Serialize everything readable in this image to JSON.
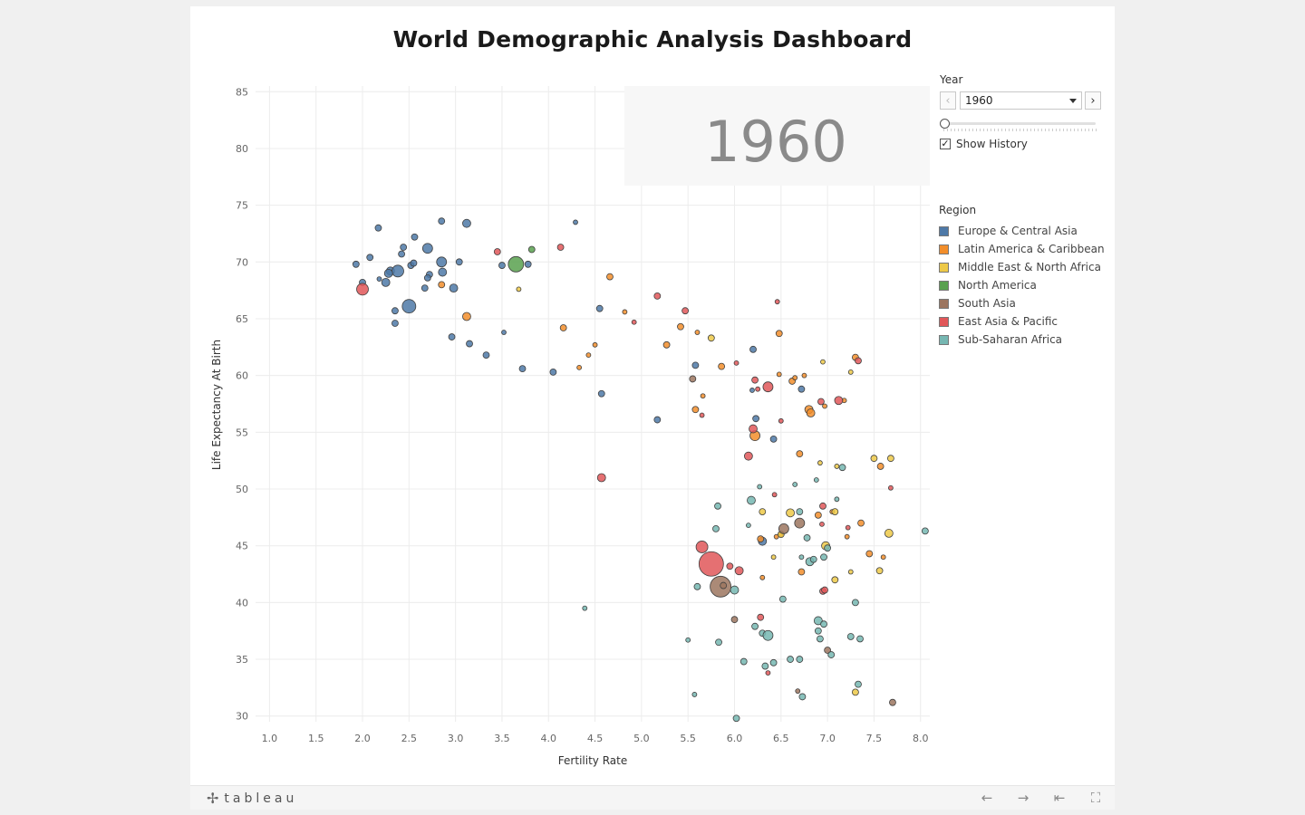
{
  "title": "World Demographic Analysis Dashboard",
  "year_watermark": "1960",
  "controls": {
    "year_label": "Year",
    "year_value": "1960",
    "slider_position": 0,
    "show_history_label": "Show History",
    "show_history_checked": true
  },
  "legend": {
    "title": "Region",
    "items": [
      {
        "label": "Europe & Central Asia",
        "color": "#4e79a7"
      },
      {
        "label": "Latin America & Caribbean",
        "color": "#f28e2b"
      },
      {
        "label": "Middle East & North Africa",
        "color": "#edc948"
      },
      {
        "label": "North America",
        "color": "#59a14f"
      },
      {
        "label": "South Asia",
        "color": "#9c755f"
      },
      {
        "label": "East Asia & Pacific",
        "color": "#e15759"
      },
      {
        "label": "Sub-Saharan Africa",
        "color": "#76b7b2"
      }
    ]
  },
  "footer": {
    "logo_text": "tableau",
    "icons": [
      "undo-icon",
      "redo-icon",
      "revert-icon",
      "fullscreen-icon"
    ]
  },
  "chart_data": {
    "type": "scatter",
    "title": "",
    "xlabel": "Fertility Rate",
    "ylabel": "Life Expectancy At Birth",
    "xlim": [
      0.85,
      8.1
    ],
    "ylim": [
      29.5,
      85.5
    ],
    "xticks": [
      "1.0",
      "1.5",
      "2.0",
      "2.5",
      "3.0",
      "3.5",
      "4.0",
      "4.5",
      "5.0",
      "5.5",
      "6.0",
      "6.5",
      "7.0",
      "7.5",
      "8.0"
    ],
    "yticks": [
      "30",
      "35",
      "40",
      "45",
      "50",
      "55",
      "60",
      "65",
      "70",
      "75",
      "80",
      "85"
    ],
    "grid": true,
    "legend_position": "right",
    "size_encodes": "population",
    "series": [
      {
        "name": "Europe & Central Asia",
        "color": "#4e79a7",
        "points": [
          [
            1.93,
            69.8,
            3
          ],
          [
            2.0,
            68.2,
            3
          ],
          [
            2.08,
            70.4,
            3
          ],
          [
            2.17,
            73.0,
            3
          ],
          [
            2.25,
            68.2,
            4
          ],
          [
            2.3,
            69.2,
            4
          ],
          [
            2.35,
            65.7,
            3
          ],
          [
            2.35,
            64.6,
            3
          ],
          [
            2.38,
            69.2,
            6
          ],
          [
            2.42,
            70.7,
            3
          ],
          [
            2.44,
            71.3,
            3
          ],
          [
            2.52,
            69.7,
            3
          ],
          [
            2.55,
            69.9,
            3
          ],
          [
            2.56,
            72.2,
            3
          ],
          [
            2.5,
            66.1,
            7
          ],
          [
            2.67,
            67.7,
            3
          ],
          [
            2.7,
            71.2,
            5
          ],
          [
            2.72,
            68.9,
            3
          ],
          [
            2.7,
            68.6,
            3
          ],
          [
            2.85,
            73.6,
            3
          ],
          [
            2.85,
            70.0,
            5
          ],
          [
            2.86,
            69.1,
            4
          ],
          [
            2.96,
            63.4,
            3
          ],
          [
            2.98,
            67.7,
            4
          ],
          [
            3.04,
            70.0,
            3
          ],
          [
            3.12,
            73.4,
            4
          ],
          [
            3.15,
            62.8,
            3
          ],
          [
            3.33,
            61.8,
            3
          ],
          [
            3.5,
            69.7,
            3
          ],
          [
            3.52,
            63.8,
            2
          ],
          [
            3.72,
            60.6,
            3
          ],
          [
            3.78,
            69.8,
            3
          ],
          [
            4.05,
            60.3,
            3
          ],
          [
            4.29,
            73.5,
            2
          ],
          [
            4.55,
            65.9,
            3
          ],
          [
            4.57,
            58.4,
            3
          ],
          [
            5.17,
            56.1,
            3
          ],
          [
            5.58,
            60.9,
            3
          ],
          [
            6.2,
            62.3,
            3
          ],
          [
            6.23,
            56.2,
            3
          ],
          [
            6.19,
            58.7,
            2
          ],
          [
            6.42,
            54.4,
            3
          ],
          [
            6.72,
            58.8,
            3
          ],
          [
            6.3,
            45.4,
            4
          ],
          [
            2.28,
            69.0,
            4
          ],
          [
            2.18,
            68.5,
            2
          ]
        ]
      },
      {
        "name": "Latin America & Caribbean",
        "color": "#f28e2b",
        "points": [
          [
            2.85,
            68.0,
            3
          ],
          [
            3.12,
            65.2,
            4
          ],
          [
            4.16,
            64.2,
            3
          ],
          [
            4.33,
            60.7,
            2
          ],
          [
            4.43,
            61.8,
            2
          ],
          [
            4.5,
            62.7,
            2
          ],
          [
            4.66,
            68.7,
            3
          ],
          [
            4.82,
            65.6,
            2
          ],
          [
            5.27,
            62.7,
            3
          ],
          [
            5.42,
            64.3,
            3
          ],
          [
            5.6,
            63.8,
            2
          ],
          [
            5.58,
            57.0,
            3
          ],
          [
            5.66,
            58.2,
            2
          ],
          [
            5.86,
            60.8,
            3
          ],
          [
            6.22,
            54.7,
            5
          ],
          [
            6.3,
            42.2,
            2
          ],
          [
            6.48,
            63.7,
            3
          ],
          [
            6.48,
            60.1,
            2
          ],
          [
            6.62,
            59.5,
            3
          ],
          [
            6.65,
            59.8,
            2
          ],
          [
            6.7,
            53.1,
            3
          ],
          [
            6.75,
            60.0,
            2
          ],
          [
            6.8,
            57.0,
            4
          ],
          [
            6.82,
            56.7,
            4
          ],
          [
            6.97,
            57.3,
            2
          ],
          [
            7.05,
            48.0,
            2
          ],
          [
            7.18,
            57.8,
            2
          ],
          [
            7.3,
            61.6,
            3
          ],
          [
            7.36,
            47.0,
            3
          ],
          [
            7.45,
            44.3,
            3
          ],
          [
            7.57,
            52.0,
            3
          ],
          [
            6.9,
            47.7,
            3
          ],
          [
            6.72,
            42.7,
            3
          ],
          [
            6.28,
            45.6,
            3
          ],
          [
            7.21,
            45.8,
            2
          ],
          [
            6.45,
            45.8,
            2
          ],
          [
            6.5,
            46.0,
            2
          ],
          [
            7.6,
            44.0,
            2
          ]
        ]
      },
      {
        "name": "Middle East & North Africa",
        "color": "#edc948",
        "points": [
          [
            3.68,
            67.6,
            2
          ],
          [
            5.75,
            63.3,
            3
          ],
          [
            6.5,
            46.0,
            3
          ],
          [
            6.6,
            47.9,
            4
          ],
          [
            6.95,
            61.2,
            2
          ],
          [
            6.98,
            45.0,
            4
          ],
          [
            7.08,
            48.0,
            3
          ],
          [
            7.1,
            52.0,
            2
          ],
          [
            7.25,
            60.3,
            2
          ],
          [
            6.92,
            52.3,
            2
          ],
          [
            7.5,
            52.7,
            3
          ],
          [
            7.68,
            52.7,
            3
          ],
          [
            7.66,
            46.1,
            4
          ],
          [
            7.56,
            42.8,
            3
          ],
          [
            7.25,
            42.7,
            2
          ],
          [
            7.08,
            42.0,
            3
          ],
          [
            7.3,
            32.1,
            3
          ],
          [
            6.3,
            48.0,
            3
          ],
          [
            6.42,
            44.0,
            2
          ]
        ]
      },
      {
        "name": "North America",
        "color": "#59a14f",
        "points": [
          [
            3.65,
            69.8,
            8
          ],
          [
            3.82,
            71.1,
            3
          ]
        ]
      },
      {
        "name": "South Asia",
        "color": "#9c755f",
        "points": [
          [
            5.85,
            41.4,
            11
          ],
          [
            5.88,
            41.5,
            3
          ],
          [
            6.53,
            46.5,
            5
          ],
          [
            6.7,
            47.0,
            5
          ],
          [
            5.55,
            59.7,
            3
          ],
          [
            6.0,
            38.5,
            3
          ],
          [
            6.68,
            32.2,
            2
          ],
          [
            7.0,
            35.8,
            3
          ],
          [
            7.7,
            31.2,
            3
          ]
        ]
      },
      {
        "name": "East Asia & Pacific",
        "color": "#e15759",
        "points": [
          [
            2.0,
            67.6,
            6
          ],
          [
            3.45,
            70.9,
            3
          ],
          [
            4.13,
            71.3,
            3
          ],
          [
            4.57,
            51.0,
            4
          ],
          [
            4.92,
            64.7,
            2
          ],
          [
            5.17,
            67.0,
            3
          ],
          [
            5.47,
            65.7,
            3
          ],
          [
            5.65,
            56.5,
            2
          ],
          [
            5.65,
            44.9,
            6
          ],
          [
            5.75,
            43.4,
            13
          ],
          [
            5.95,
            43.2,
            3
          ],
          [
            6.05,
            42.8,
            4
          ],
          [
            6.2,
            55.3,
            4
          ],
          [
            6.15,
            52.9,
            4
          ],
          [
            6.25,
            58.8,
            2
          ],
          [
            6.22,
            59.6,
            3
          ],
          [
            6.36,
            59.0,
            5
          ],
          [
            6.43,
            49.5,
            2
          ],
          [
            6.5,
            56.0,
            2
          ],
          [
            6.46,
            66.5,
            2
          ],
          [
            6.28,
            38.7,
            3
          ],
          [
            6.36,
            33.8,
            2
          ],
          [
            6.94,
            46.9,
            2
          ],
          [
            6.95,
            48.5,
            3
          ],
          [
            6.93,
            57.7,
            3
          ],
          [
            7.12,
            57.8,
            4
          ],
          [
            7.33,
            61.3,
            3
          ],
          [
            7.68,
            50.1,
            2
          ],
          [
            6.02,
            61.1,
            2
          ],
          [
            7.22,
            46.6,
            2
          ],
          [
            6.95,
            41.0,
            3
          ],
          [
            6.97,
            41.1,
            3
          ]
        ]
      },
      {
        "name": "Sub-Saharan Africa",
        "color": "#76b7b2",
        "points": [
          [
            4.39,
            39.5,
            2
          ],
          [
            5.5,
            36.7,
            2
          ],
          [
            5.57,
            31.9,
            2
          ],
          [
            5.6,
            41.4,
            3
          ],
          [
            5.8,
            46.5,
            3
          ],
          [
            5.82,
            48.5,
            3
          ],
          [
            5.83,
            36.5,
            3
          ],
          [
            6.0,
            41.1,
            4
          ],
          [
            6.02,
            29.8,
            3
          ],
          [
            6.1,
            34.8,
            3
          ],
          [
            6.15,
            46.8,
            2
          ],
          [
            6.18,
            49.0,
            4
          ],
          [
            6.22,
            37.9,
            3
          ],
          [
            6.27,
            50.2,
            2
          ],
          [
            6.3,
            37.3,
            3
          ],
          [
            6.33,
            34.4,
            3
          ],
          [
            6.36,
            37.1,
            5
          ],
          [
            6.42,
            34.7,
            3
          ],
          [
            6.52,
            40.3,
            3
          ],
          [
            6.6,
            35.0,
            3
          ],
          [
            6.65,
            50.4,
            2
          ],
          [
            6.7,
            48.0,
            3
          ],
          [
            6.72,
            44.0,
            2
          ],
          [
            6.73,
            31.7,
            3
          ],
          [
            6.78,
            45.7,
            3
          ],
          [
            6.81,
            43.6,
            4
          ],
          [
            6.85,
            43.8,
            3
          ],
          [
            6.9,
            38.4,
            4
          ],
          [
            6.9,
            37.5,
            3
          ],
          [
            6.92,
            36.8,
            3
          ],
          [
            6.96,
            38.1,
            3
          ],
          [
            6.96,
            44.0,
            3
          ],
          [
            7.0,
            44.8,
            3
          ],
          [
            7.04,
            35.4,
            3
          ],
          [
            7.1,
            49.1,
            2
          ],
          [
            7.16,
            51.9,
            3
          ],
          [
            7.25,
            37.0,
            3
          ],
          [
            7.3,
            40.0,
            3
          ],
          [
            7.35,
            36.8,
            3
          ],
          [
            7.33,
            32.8,
            3
          ],
          [
            8.05,
            46.3,
            3
          ],
          [
            6.7,
            35.0,
            3
          ],
          [
            6.88,
            50.8,
            2
          ]
        ]
      }
    ]
  }
}
